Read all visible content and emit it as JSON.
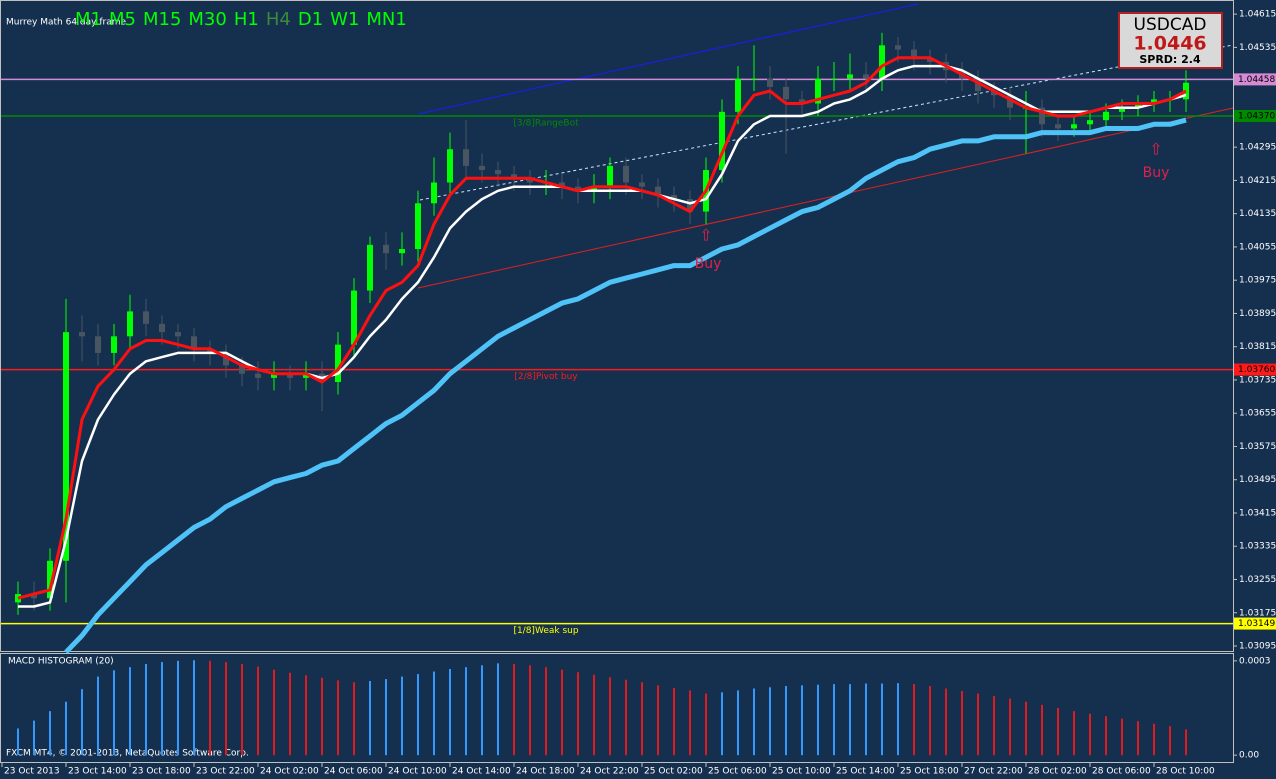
{
  "chart_data": [
    {
      "type": "candlestick",
      "title": "Murrey Math 64 day frame",
      "categories": [
        "23 Oct 2013",
        null,
        null,
        null,
        "23 Oct 14:00",
        null,
        null,
        null,
        "23 Oct 18:00",
        null,
        null,
        null,
        "23 Oct 22:00",
        null,
        null,
        null,
        "24 Oct 02:00",
        null,
        null,
        null,
        "24 Oct 06:00",
        null,
        null,
        null,
        "24 Oct 10:00",
        null,
        null,
        null,
        "24 Oct 14:00",
        null,
        null,
        null,
        "24 Oct 18:00",
        null,
        null,
        null,
        "24 Oct 22:00",
        null,
        null,
        null,
        "25 Oct 02:00",
        null,
        null,
        null,
        "25 Oct 06:00",
        null,
        null,
        null,
        "25 Oct 10:00",
        null,
        null,
        null,
        "25 Oct 14:00",
        null,
        null,
        null,
        "25 Oct 18:00",
        null,
        null,
        null,
        "27 Oct 22:00",
        null,
        null,
        null,
        "28 Oct 02:00",
        null,
        null,
        null,
        "28 Oct 06:00",
        null,
        null,
        null,
        "28 Oct 10:00",
        null
      ],
      "open": [
        1.032,
        1.0322,
        1.0321,
        1.033,
        1.0385,
        1.0384,
        1.038,
        1.0384,
        1.039,
        1.0387,
        1.0385,
        1.0384,
        1.0381,
        1.038,
        1.0377,
        1.0375,
        1.0374,
        1.0375,
        1.0374,
        1.0375,
        1.0373,
        1.0382,
        1.0395,
        1.0406,
        1.0404,
        1.0405,
        1.0416,
        1.0421,
        1.0429,
        1.0425,
        1.0424,
        1.0423,
        1.0422,
        1.0421,
        1.0421,
        1.042,
        1.0419,
        1.042,
        1.0425,
        1.0421,
        1.042,
        1.0418,
        1.0417,
        1.0414,
        1.0424,
        1.0438,
        1.0446,
        1.0446,
        1.0444,
        1.0441,
        1.044,
        1.0446,
        1.0446,
        1.0447,
        1.0446,
        1.0454,
        1.0453,
        1.0451,
        1.045,
        1.0448,
        1.0446,
        1.0443,
        1.0442,
        1.0439,
        1.0439,
        1.0435,
        1.0434,
        1.0435,
        1.0436,
        1.0438,
        1.0439,
        1.044,
        1.0441,
        1.0441
      ],
      "high": [
        1.0325,
        1.0325,
        1.0333,
        1.0393,
        1.0389,
        1.0387,
        1.0387,
        1.0394,
        1.0393,
        1.0389,
        1.0387,
        1.0386,
        1.0383,
        1.0382,
        1.0379,
        1.0378,
        1.0378,
        1.0377,
        1.0378,
        1.0378,
        1.0385,
        1.0398,
        1.0408,
        1.0409,
        1.0409,
        1.0419,
        1.0427,
        1.0433,
        1.0436,
        1.0428,
        1.0426,
        1.0425,
        1.0424,
        1.0424,
        1.0423,
        1.0422,
        1.0423,
        1.0427,
        1.0427,
        1.0423,
        1.0422,
        1.042,
        1.0419,
        1.0427,
        1.0441,
        1.0449,
        1.0454,
        1.0449,
        1.0446,
        1.0443,
        1.0449,
        1.045,
        1.0452,
        1.045,
        1.0457,
        1.0456,
        1.0455,
        1.0453,
        1.0452,
        1.045,
        1.0448,
        1.0445,
        1.0444,
        1.0443,
        1.0441,
        1.0437,
        1.0437,
        1.0438,
        1.044,
        1.0441,
        1.0442,
        1.0443,
        1.0443,
        1.0448
      ],
      "low": [
        1.0317,
        1.0318,
        1.0318,
        1.032,
        1.0378,
        1.0377,
        1.0377,
        1.0381,
        1.0384,
        1.0382,
        1.0381,
        1.0378,
        1.0377,
        1.0374,
        1.0372,
        1.0371,
        1.0371,
        1.0371,
        1.0371,
        1.0366,
        1.037,
        1.0379,
        1.0392,
        1.04,
        1.0401,
        1.0402,
        1.0413,
        1.0418,
        1.0422,
        1.0421,
        1.042,
        1.0419,
        1.0418,
        1.0418,
        1.0417,
        1.0416,
        1.0416,
        1.0417,
        1.0418,
        1.0417,
        1.0415,
        1.0414,
        1.0411,
        1.0411,
        1.0421,
        1.0435,
        1.0443,
        1.0441,
        1.0428,
        1.0437,
        1.0437,
        1.0443,
        1.0443,
        1.0443,
        1.0443,
        1.045,
        1.0448,
        1.0447,
        1.0445,
        1.0443,
        1.044,
        1.0439,
        1.0436,
        1.0428,
        1.0432,
        1.0431,
        1.0432,
        1.0433,
        1.0434,
        1.0436,
        1.0437,
        1.0438,
        1.0438,
        1.0438
      ],
      "close": [
        1.0322,
        1.0321,
        1.033,
        1.0385,
        1.0384,
        1.038,
        1.0384,
        1.039,
        1.0387,
        1.0385,
        1.0384,
        1.0381,
        1.038,
        1.0377,
        1.0375,
        1.0374,
        1.0375,
        1.0374,
        1.0375,
        1.0373,
        1.0382,
        1.0395,
        1.0406,
        1.0404,
        1.0405,
        1.0416,
        1.0421,
        1.0429,
        1.0425,
        1.0424,
        1.0423,
        1.0422,
        1.0421,
        1.0421,
        1.042,
        1.0419,
        1.042,
        1.0425,
        1.0421,
        1.042,
        1.0418,
        1.0417,
        1.0414,
        1.0424,
        1.0438,
        1.0446,
        1.0446,
        1.0444,
        1.0441,
        1.044,
        1.0446,
        1.0446,
        1.0447,
        1.0446,
        1.0454,
        1.0453,
        1.0451,
        1.045,
        1.0448,
        1.0446,
        1.0443,
        1.0442,
        1.0439,
        1.0439,
        1.0435,
        1.0434,
        1.0435,
        1.0436,
        1.0438,
        1.0439,
        1.044,
        1.0441,
        1.0441,
        1.0445
      ],
      "up_color": "#00ff00",
      "down_color": "#4a5562",
      "lines": [
        {
          "color": "#4fc3f7",
          "width": 5,
          "values": [
            null,
            null,
            null,
            1.0308,
            1.0312,
            1.0317,
            1.0321,
            1.0325,
            1.0329,
            1.0332,
            1.0335,
            1.0338,
            1.034,
            1.0343,
            1.0345,
            1.0347,
            1.0349,
            1.035,
            1.0351,
            1.0353,
            1.0354,
            1.0357,
            1.036,
            1.0363,
            1.0365,
            1.0368,
            1.0371,
            1.0375,
            1.0378,
            1.0381,
            1.0384,
            1.0386,
            1.0388,
            1.039,
            1.0392,
            1.0393,
            1.0395,
            1.0397,
            1.0398,
            1.0399,
            1.04,
            1.0401,
            1.0401,
            1.0403,
            1.0405,
            1.0406,
            1.0408,
            1.041,
            1.0412,
            1.0414,
            1.0415,
            1.0417,
            1.0419,
            1.0422,
            1.0424,
            1.0426,
            1.0427,
            1.0429,
            1.043,
            1.0431,
            1.0431,
            1.0432,
            1.0432,
            1.0432,
            1.0433,
            1.0433,
            1.0433,
            1.0433,
            1.0434,
            1.0434,
            1.0434,
            1.0435,
            1.0435,
            1.0436
          ]
        },
        {
          "color": "#ffffff",
          "width": 2.5,
          "values": [
            1.0319,
            1.0319,
            1.032,
            1.0335,
            1.0354,
            1.0364,
            1.037,
            1.0375,
            1.0378,
            1.0379,
            1.038,
            1.038,
            1.038,
            1.038,
            1.0378,
            1.0376,
            1.0375,
            1.0375,
            1.0375,
            1.0374,
            1.0375,
            1.0379,
            1.0384,
            1.0388,
            1.0393,
            1.0397,
            1.0403,
            1.041,
            1.0414,
            1.0417,
            1.0419,
            1.042,
            1.042,
            1.042,
            1.042,
            1.0419,
            1.0419,
            1.0419,
            1.0419,
            1.0419,
            1.0418,
            1.0417,
            1.0416,
            1.0417,
            1.0423,
            1.0431,
            1.0435,
            1.0437,
            1.0437,
            1.0437,
            1.0438,
            1.044,
            1.0441,
            1.0443,
            1.0446,
            1.0448,
            1.0449,
            1.0449,
            1.0449,
            1.0448,
            1.0446,
            1.0444,
            1.0442,
            1.044,
            1.0438,
            1.0438,
            1.0438,
            1.0438,
            1.0439,
            1.0439,
            1.0439,
            1.044,
            1.0441,
            1.0442
          ]
        },
        {
          "color": "#ff1010",
          "width": 3,
          "values": [
            1.0321,
            1.0322,
            1.0323,
            1.034,
            1.0364,
            1.0372,
            1.0376,
            1.0381,
            1.0383,
            1.0383,
            1.0382,
            1.0381,
            1.0381,
            1.0379,
            1.0377,
            1.0376,
            1.0375,
            1.0375,
            1.0375,
            1.0373,
            1.0376,
            1.0382,
            1.0389,
            1.0395,
            1.0397,
            1.0401,
            1.0411,
            1.0418,
            1.0422,
            1.0422,
            1.0422,
            1.0422,
            1.0422,
            1.0421,
            1.042,
            1.0419,
            1.042,
            1.042,
            1.042,
            1.0419,
            1.0418,
            1.0416,
            1.0414,
            1.0419,
            1.0428,
            1.0437,
            1.0442,
            1.0443,
            1.044,
            1.044,
            1.0441,
            1.0442,
            1.0443,
            1.0445,
            1.0449,
            1.0451,
            1.0451,
            1.0451,
            1.0449,
            1.0447,
            1.0445,
            1.0443,
            1.0441,
            1.0439,
            1.0438,
            1.0437,
            1.0437,
            1.0438,
            1.0439,
            1.044,
            1.044,
            1.044,
            1.0441,
            1.0443
          ]
        }
      ],
      "levels": [
        {
          "value": 1.04458,
          "label": "1.04458",
          "color": "#d58ad5"
        },
        {
          "value": 1.0437,
          "label": "1.04370",
          "name": "[3/8]RangeBot",
          "color": "#008a00"
        },
        {
          "value": 1.0376,
          "label": "1.03760",
          "name": "[2/8]Pivot buy",
          "color": "#ff1a1a"
        },
        {
          "value": 1.03149,
          "label": "1.03149",
          "name": "[1/8]Weak sup",
          "color": "#ffff00"
        }
      ],
      "annotations": [
        "Buy",
        "Buy"
      ],
      "ylim": [
        1.03083,
        1.04649
      ],
      "yticks": [
        1.04615,
        1.04535,
        1.04295,
        1.04215,
        1.04135,
        1.04055,
        1.03975,
        1.03895,
        1.03815,
        1.03735,
        1.03655,
        1.03575,
        1.03495,
        1.03415,
        1.03335,
        1.03255,
        1.03175,
        1.03095
      ]
    },
    {
      "type": "histogram",
      "title": "MACD HISTOGRAM (20)",
      "values": [
        8.5e-05,
        0.00011,
        0.00014,
        0.00017,
        0.00021,
        0.00025,
        0.00027,
        0.00028,
        0.00029,
        0.000296,
        0.0003,
        0.000302,
        0.0003,
        0.000296,
        0.00029,
        0.000282,
        0.000272,
        0.000262,
        0.000254,
        0.000246,
        0.000238,
        0.000232,
        0.000236,
        0.000242,
        0.00025,
        0.000258,
        0.000266,
        0.000274,
        0.00028,
        0.000286,
        0.000292,
        0.00029,
        0.000286,
        0.00028,
        0.000272,
        0.000264,
        0.000256,
        0.000248,
        0.00024,
        0.000232,
        0.000222,
        0.000214,
        0.000206,
        0.000196,
        0.0002,
        0.000206,
        0.000212,
        0.000216,
        0.00022,
        0.000222,
        0.000224,
        0.000226,
        0.000226,
        0.000228,
        0.000228,
        0.000229,
        0.000226,
        0.00022,
        0.000212,
        0.000204,
        0.000196,
        0.000188,
        0.00018,
        0.00017,
        0.00016,
        0.00015,
        0.00014,
        0.000132,
        0.000124,
        0.000116,
        0.000108,
        0.0001,
        9.2e-05,
        8.2e-05
      ],
      "up_color": "#3399ff",
      "down_color": "#e01b1b",
      "ylim": [
        -2.5e-05,
        0.000325
      ],
      "yticks": [
        0.0003,
        {
          "value": 0,
          "label": "0.00"
        }
      ]
    }
  ],
  "ui": {
    "timeframes": [
      "M1",
      "M5",
      "M15",
      "M30",
      "H1",
      "H4",
      "D1",
      "W1",
      "MN1"
    ],
    "active_timeframe": "H4",
    "symbol": "USDCAD",
    "bid": "1.0446",
    "spread": "SPRD: 2.4",
    "copyright": "FXCM MT4, © 2001-2013, MetaQuotes Software Corp."
  }
}
